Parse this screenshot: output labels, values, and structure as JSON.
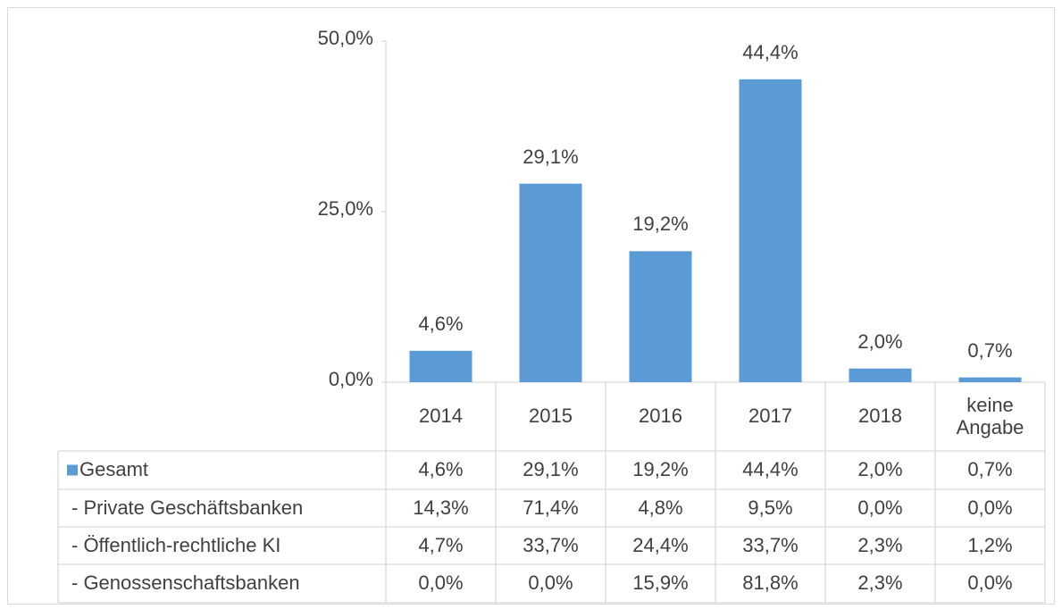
{
  "chart_data": {
    "type": "bar",
    "categories": [
      "2014",
      "2015",
      "2016",
      "2017",
      "2018",
      "keine Angabe"
    ],
    "series": [
      {
        "name": "Gesamt",
        "color": "#5b9bd5",
        "values": [
          4.6,
          29.1,
          19.2,
          44.4,
          2.0,
          0.7
        ],
        "value_labels": [
          "4,6%",
          "29,1%",
          "19,2%",
          "44,4%",
          "2,0%",
          "0,7%"
        ]
      },
      {
        "name": "- Private Geschäftsbanken",
        "values": [
          14.3,
          71.4,
          4.8,
          9.5,
          0.0,
          0.0
        ],
        "value_labels": [
          "14,3%",
          "71,4%",
          "4,8%",
          "9,5%",
          "0,0%",
          "0,0%"
        ]
      },
      {
        "name": "- Öffentlich-rechtliche KI",
        "values": [
          4.7,
          33.7,
          24.4,
          33.7,
          2.3,
          1.2
        ],
        "value_labels": [
          "4,7%",
          "33,7%",
          "24,4%",
          "33,7%",
          "2,3%",
          "1,2%"
        ]
      },
      {
        "name": "- Genossenschaftsbanken",
        "values": [
          0.0,
          0.0,
          15.9,
          81.8,
          2.3,
          0.0
        ],
        "value_labels": [
          "0,0%",
          "0,0%",
          "15,9%",
          "81,8%",
          "2,3%",
          "0,0%"
        ]
      }
    ],
    "ylim": [
      0,
      50
    ],
    "yticks": [
      {
        "value": 0,
        "label": "0,0%"
      },
      {
        "value": 25,
        "label": "25,0%"
      },
      {
        "value": 50,
        "label": "50,0%"
      }
    ],
    "data_table": true
  }
}
